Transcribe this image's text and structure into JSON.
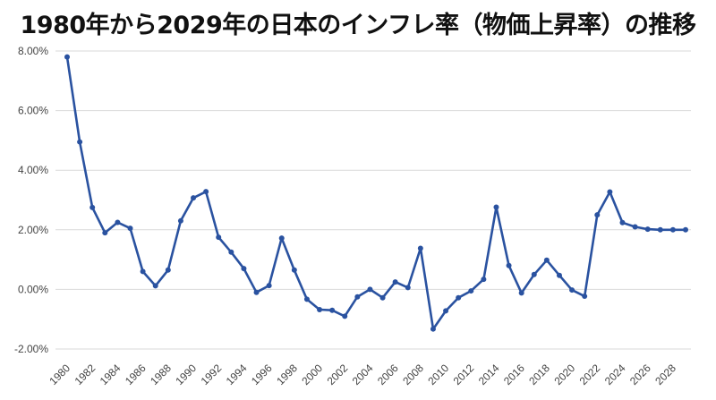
{
  "chart_data": {
    "type": "line",
    "title": "1980年から2029年の日本のインフレ率（物価上昇率）の推移",
    "xlabel": "",
    "ylabel": "",
    "ylim": [
      -2,
      8
    ],
    "yticks": [
      8,
      6,
      4,
      2,
      0,
      -2
    ],
    "ytick_labels": [
      "8.00%",
      "6.00%",
      "4.00%",
      "2.00%",
      "0.00%",
      "-2.00%"
    ],
    "xticks": [
      1980,
      1982,
      1984,
      1986,
      1988,
      1990,
      1992,
      1994,
      1996,
      1998,
      2000,
      2002,
      2004,
      2006,
      2008,
      2010,
      2012,
      2014,
      2016,
      2018,
      2020,
      2022,
      2024,
      2026,
      2028
    ],
    "xtick_labels": [
      "1980",
      "1982",
      "1984",
      "1986",
      "1988",
      "1990",
      "1992",
      "1994",
      "1996",
      "1998",
      "2000",
      "2002",
      "2004",
      "2006",
      "2008",
      "2010",
      "2012",
      "2014",
      "2016",
      "2018",
      "2020",
      "2022",
      "2024",
      "2026",
      "2028"
    ],
    "grid": true,
    "legend": "none",
    "color": "#2a52a0",
    "x": [
      1980,
      1981,
      1982,
      1983,
      1984,
      1985,
      1986,
      1987,
      1988,
      1989,
      1990,
      1991,
      1992,
      1993,
      1994,
      1995,
      1996,
      1997,
      1998,
      1999,
      2000,
      2001,
      2002,
      2003,
      2004,
      2005,
      2006,
      2007,
      2008,
      2009,
      2010,
      2011,
      2012,
      2013,
      2014,
      2015,
      2016,
      2017,
      2018,
      2019,
      2020,
      2021,
      2022,
      2023,
      2024,
      2025,
      2026,
      2027,
      2028,
      2029
    ],
    "values": [
      7.8,
      4.95,
      2.75,
      1.9,
      2.25,
      2.05,
      0.6,
      0.12,
      0.65,
      2.3,
      3.07,
      3.28,
      1.75,
      1.25,
      0.7,
      -0.1,
      0.13,
      1.72,
      0.65,
      -0.33,
      -0.68,
      -0.7,
      -0.9,
      -0.25,
      0.0,
      -0.28,
      0.25,
      0.06,
      1.38,
      -1.33,
      -0.72,
      -0.28,
      -0.05,
      0.34,
      2.76,
      0.8,
      -0.12,
      0.5,
      0.98,
      0.47,
      -0.02,
      -0.23,
      2.5,
      3.27,
      2.24,
      2.1,
      2.02,
      2.0,
      2.0,
      2.0
    ]
  }
}
